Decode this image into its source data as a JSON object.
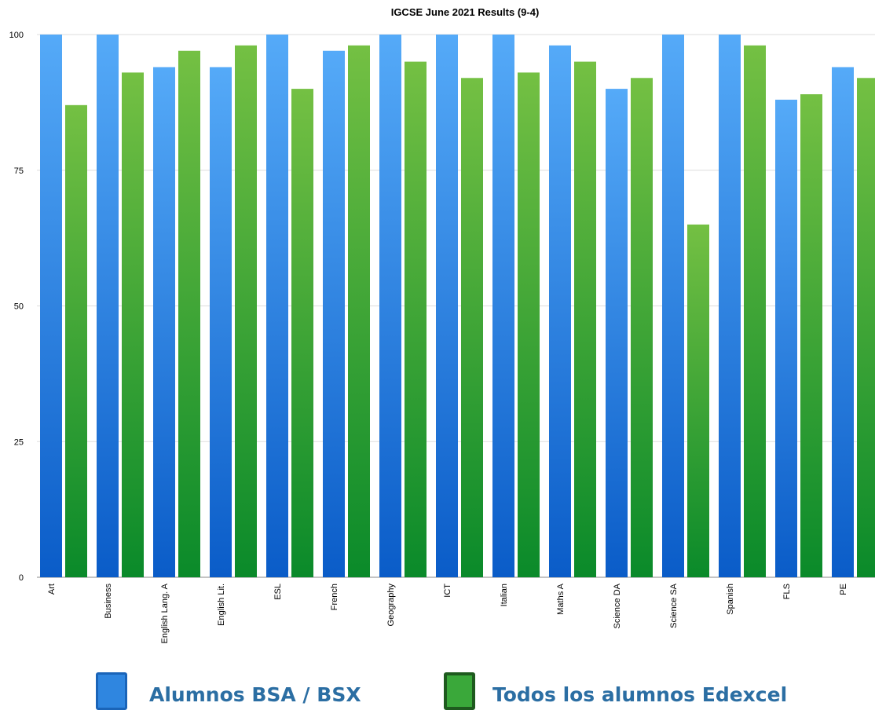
{
  "chart_data": {
    "type": "bar",
    "title": "IGCSE June 2021 Results (9-4)",
    "xlabel": "",
    "ylabel": "",
    "ylim": [
      0,
      100
    ],
    "yticks": [
      0,
      25,
      50,
      75,
      100
    ],
    "grid": true,
    "categories": [
      "Art",
      "Business",
      "English Lang. A",
      "English Lit.",
      "ESL",
      "French",
      "Geography",
      "ICT",
      "Italian",
      "Maths A",
      "Science DA",
      "Science SA",
      "Spanish",
      "FLS",
      "PE"
    ],
    "series": [
      {
        "name": "Alumnos BSA / BSX",
        "color": "#3b8fe8",
        "values": [
          100,
          100,
          94,
          94,
          100,
          97,
          100,
          100,
          100,
          98,
          90,
          100,
          100,
          88,
          94
        ]
      },
      {
        "name": "Todos los alumnos Edexcel",
        "color": "#3aa83a",
        "values": [
          87,
          93,
          97,
          98,
          90,
          98,
          95,
          92,
          93,
          95,
          92,
          65,
          98,
          89,
          92
        ]
      }
    ],
    "legend_position": "bottom"
  },
  "legend": {
    "items": [
      {
        "label": "Alumnos BSA / BSX",
        "text_color": "#2b6ea3"
      },
      {
        "label": "Todos los alumnos Edexcel",
        "text_color": "#2b6ea3"
      }
    ]
  }
}
